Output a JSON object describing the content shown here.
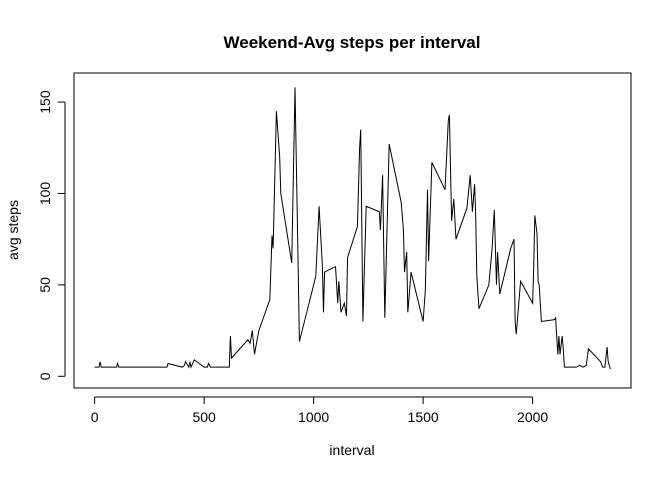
{
  "chart_data": {
    "type": "line",
    "title": "Weekend-Avg steps per interval",
    "x_label": "interval",
    "y_label": "avg steps",
    "x": [
      0,
      20,
      25,
      30,
      100,
      105,
      110,
      115,
      200,
      300,
      330,
      335,
      400,
      410,
      415,
      430,
      435,
      440,
      455,
      500,
      515,
      520,
      530,
      600,
      615,
      620,
      625,
      640,
      700,
      710,
      720,
      730,
      745,
      750,
      800,
      810,
      815,
      830,
      845,
      850,
      900,
      915,
      925,
      935,
      1000,
      1010,
      1025,
      1040,
      1045,
      1050,
      1100,
      1110,
      1115,
      1125,
      1140,
      1150,
      1155,
      1200,
      1210,
      1215,
      1225,
      1240,
      1300,
      1305,
      1315,
      1325,
      1345,
      1400,
      1410,
      1415,
      1425,
      1430,
      1445,
      1500,
      1510,
      1520,
      1525,
      1540,
      1600,
      1615,
      1620,
      1630,
      1640,
      1650,
      1700,
      1715,
      1725,
      1735,
      1740,
      1745,
      1755,
      1800,
      1815,
      1825,
      1835,
      1840,
      1850,
      1900,
      1915,
      1920,
      1925,
      1930,
      1945,
      2000,
      2005,
      2010,
      2020,
      2025,
      2030,
      2040,
      2100,
      2105,
      2115,
      2120,
      2125,
      2135,
      2140,
      2145,
      2200,
      2215,
      2230,
      2245,
      2255,
      2310,
      2320,
      2330,
      2340,
      2345,
      2355
    ],
    "values": [
      5,
      5,
      8,
      5,
      5,
      7,
      5,
      5,
      5,
      5,
      5,
      7,
      5,
      6,
      8,
      5,
      8,
      5,
      9,
      5,
      5,
      7,
      5,
      5,
      5,
      22,
      10,
      12,
      20,
      18,
      25,
      12,
      22,
      25,
      42,
      77,
      70,
      145,
      120,
      100,
      62,
      158,
      90,
      19,
      50,
      55,
      93,
      60,
      35,
      57,
      60,
      40,
      52,
      35,
      40,
      33,
      65,
      82,
      125,
      135,
      30,
      93,
      90,
      80,
      110,
      32,
      127,
      95,
      80,
      57,
      68,
      35,
      57,
      30,
      47,
      102,
      63,
      117,
      102,
      140,
      143,
      85,
      97,
      75,
      92,
      110,
      90,
      105,
      88,
      55,
      37,
      50,
      70,
      91,
      50,
      68,
      45,
      70,
      75,
      30,
      23,
      30,
      52,
      40,
      60,
      88,
      78,
      52,
      50,
      30,
      31,
      32,
      12,
      22,
      12,
      22,
      15,
      5,
      5,
      6,
      5,
      6,
      15,
      8,
      5,
      5,
      16,
      8,
      4
    ],
    "color": "#000000",
    "xlim": [
      -94.2,
      2449.2
    ],
    "ylim": [
      -6.4,
      165.9
    ],
    "xticks": [
      0,
      500,
      1000,
      1500,
      2000
    ],
    "yticks": [
      0,
      50,
      100,
      150
    ]
  }
}
